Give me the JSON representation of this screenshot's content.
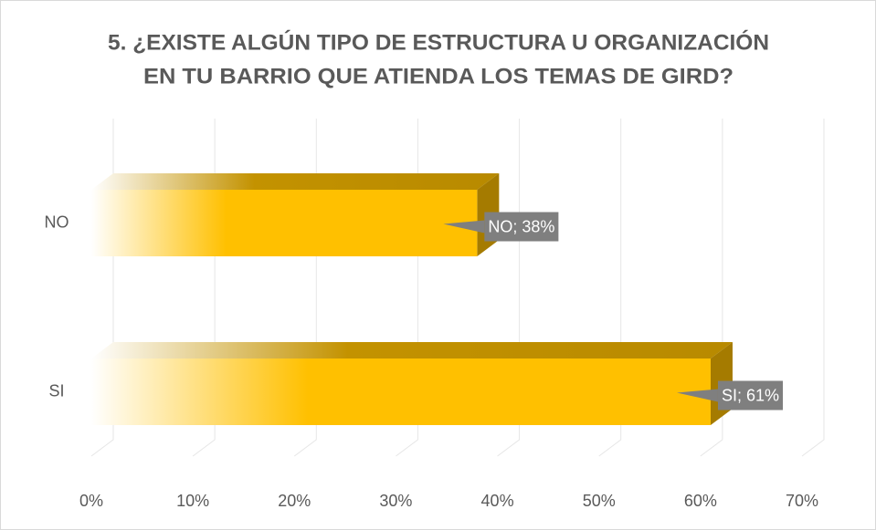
{
  "chart_data": {
    "type": "bar3d_horizontal",
    "title": [
      "5. ¿EXISTE ALGÚN TIPO DE ESTRUCTURA U ORGANIZACIÓN",
      "EN TU BARRIO QUE ATIENDA LOS TEMAS DE GIRD?"
    ],
    "categories": [
      "NO",
      "SI"
    ],
    "values": [
      38,
      61
    ],
    "value_labels": [
      "NO; 38%",
      "SI; 61%"
    ],
    "color": "#ffc000",
    "xlim": [
      0,
      70
    ],
    "xticks": [
      {
        "value": 0,
        "label": "0%"
      },
      {
        "value": 10,
        "label": "10%"
      },
      {
        "value": 20,
        "label": "20%"
      },
      {
        "value": 30,
        "label": "30%"
      },
      {
        "value": 40,
        "label": "40%"
      },
      {
        "value": 50,
        "label": "50%"
      },
      {
        "value": 60,
        "label": "60%"
      },
      {
        "value": 70,
        "label": "70%"
      }
    ],
    "grid": true
  }
}
